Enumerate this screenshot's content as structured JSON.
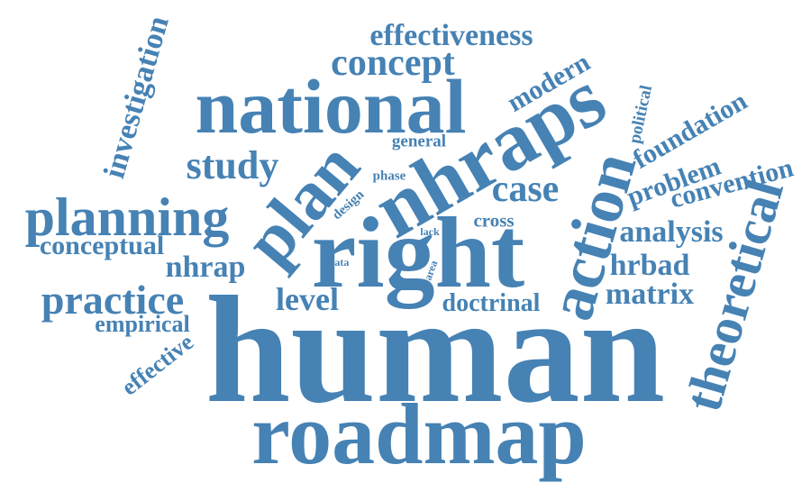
{
  "colors": {
    "text": "#4682b4",
    "background": "#ffffff"
  },
  "words": {
    "human": "human",
    "roadmap": "roadmap",
    "right": "right",
    "national": "national",
    "nhraps": "nhraps",
    "action": "action",
    "theoretical": "theoretical",
    "plan": "plan",
    "planning": "planning",
    "practice": "practice",
    "study": "study",
    "investigation": "investigation",
    "concept": "concept",
    "effectiveness": "effectiveness",
    "modern": "modern",
    "political": "political",
    "foundation": "foundation",
    "problem": "problem",
    "convention": "convention",
    "analysis": "analysis",
    "hrbad": "hrbad",
    "matrix": "matrix",
    "doctrinal": "doctrinal",
    "level": "level",
    "nhrap": "nhrap",
    "conceptual": "conceptual",
    "empirical": "empirical",
    "effective": "effective",
    "case": "case",
    "cross": "cross",
    "general": "general",
    "design": "design",
    "phase": "phase",
    "lack": "lack",
    "data": "data",
    "area": "area"
  }
}
